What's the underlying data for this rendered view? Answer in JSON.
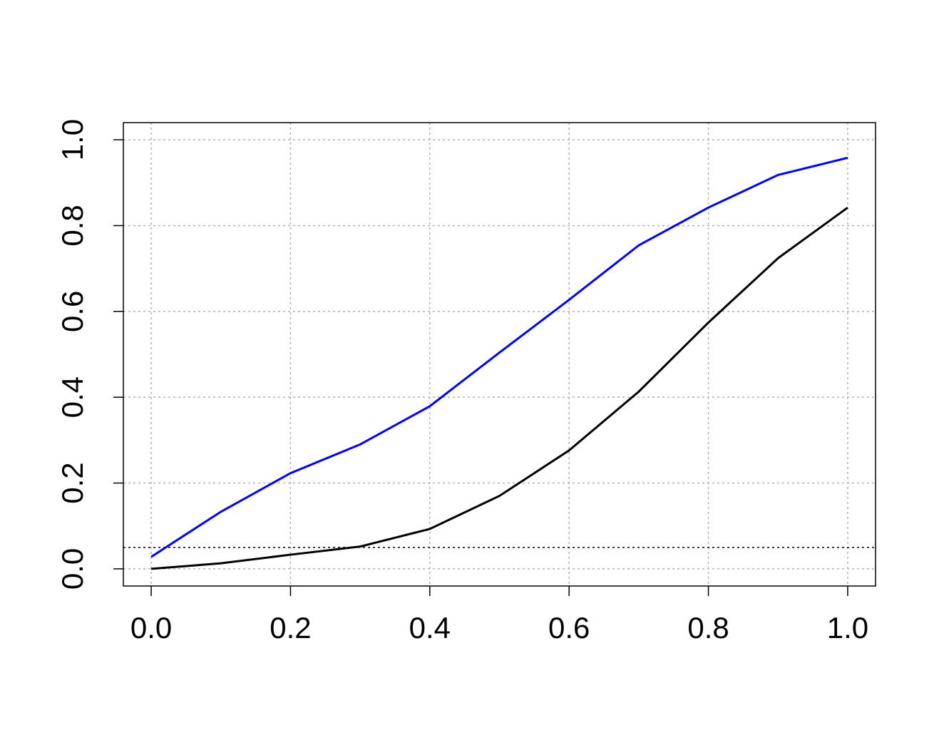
{
  "chart_data": {
    "type": "line",
    "x": [
      0,
      0.1,
      0.2,
      0.3,
      0.4,
      0.5,
      0.6,
      0.7,
      0.8,
      0.9,
      1
    ],
    "series": [
      {
        "color": "#0000ff",
        "values": [
          0.028,
          0.133,
          0.223,
          0.29,
          0.379,
          0.504,
          0.627,
          0.754,
          0.842,
          0.918,
          0.958
        ]
      },
      {
        "color": "#000000",
        "values": [
          0,
          0.013,
          0.033,
          0.052,
          0.093,
          0.17,
          0.276,
          0.413,
          0.574,
          0.724,
          0.842
        ]
      }
    ],
    "hlines": [
      0.05
    ],
    "xlim": [
      -0.04,
      1.04
    ],
    "ylim": [
      -0.04,
      1.04
    ],
    "xticks": [
      {
        "value": 0,
        "label": "0.0"
      },
      0.2,
      0.4,
      0.6,
      0.8,
      {
        "value": 1,
        "label": "1.0"
      }
    ],
    "yticks": [
      {
        "value": 0,
        "label": "0.0"
      },
      0.2,
      0.4,
      0.6,
      0.8,
      {
        "value": 1,
        "label": "1.0"
      }
    ],
    "grid": true
  }
}
